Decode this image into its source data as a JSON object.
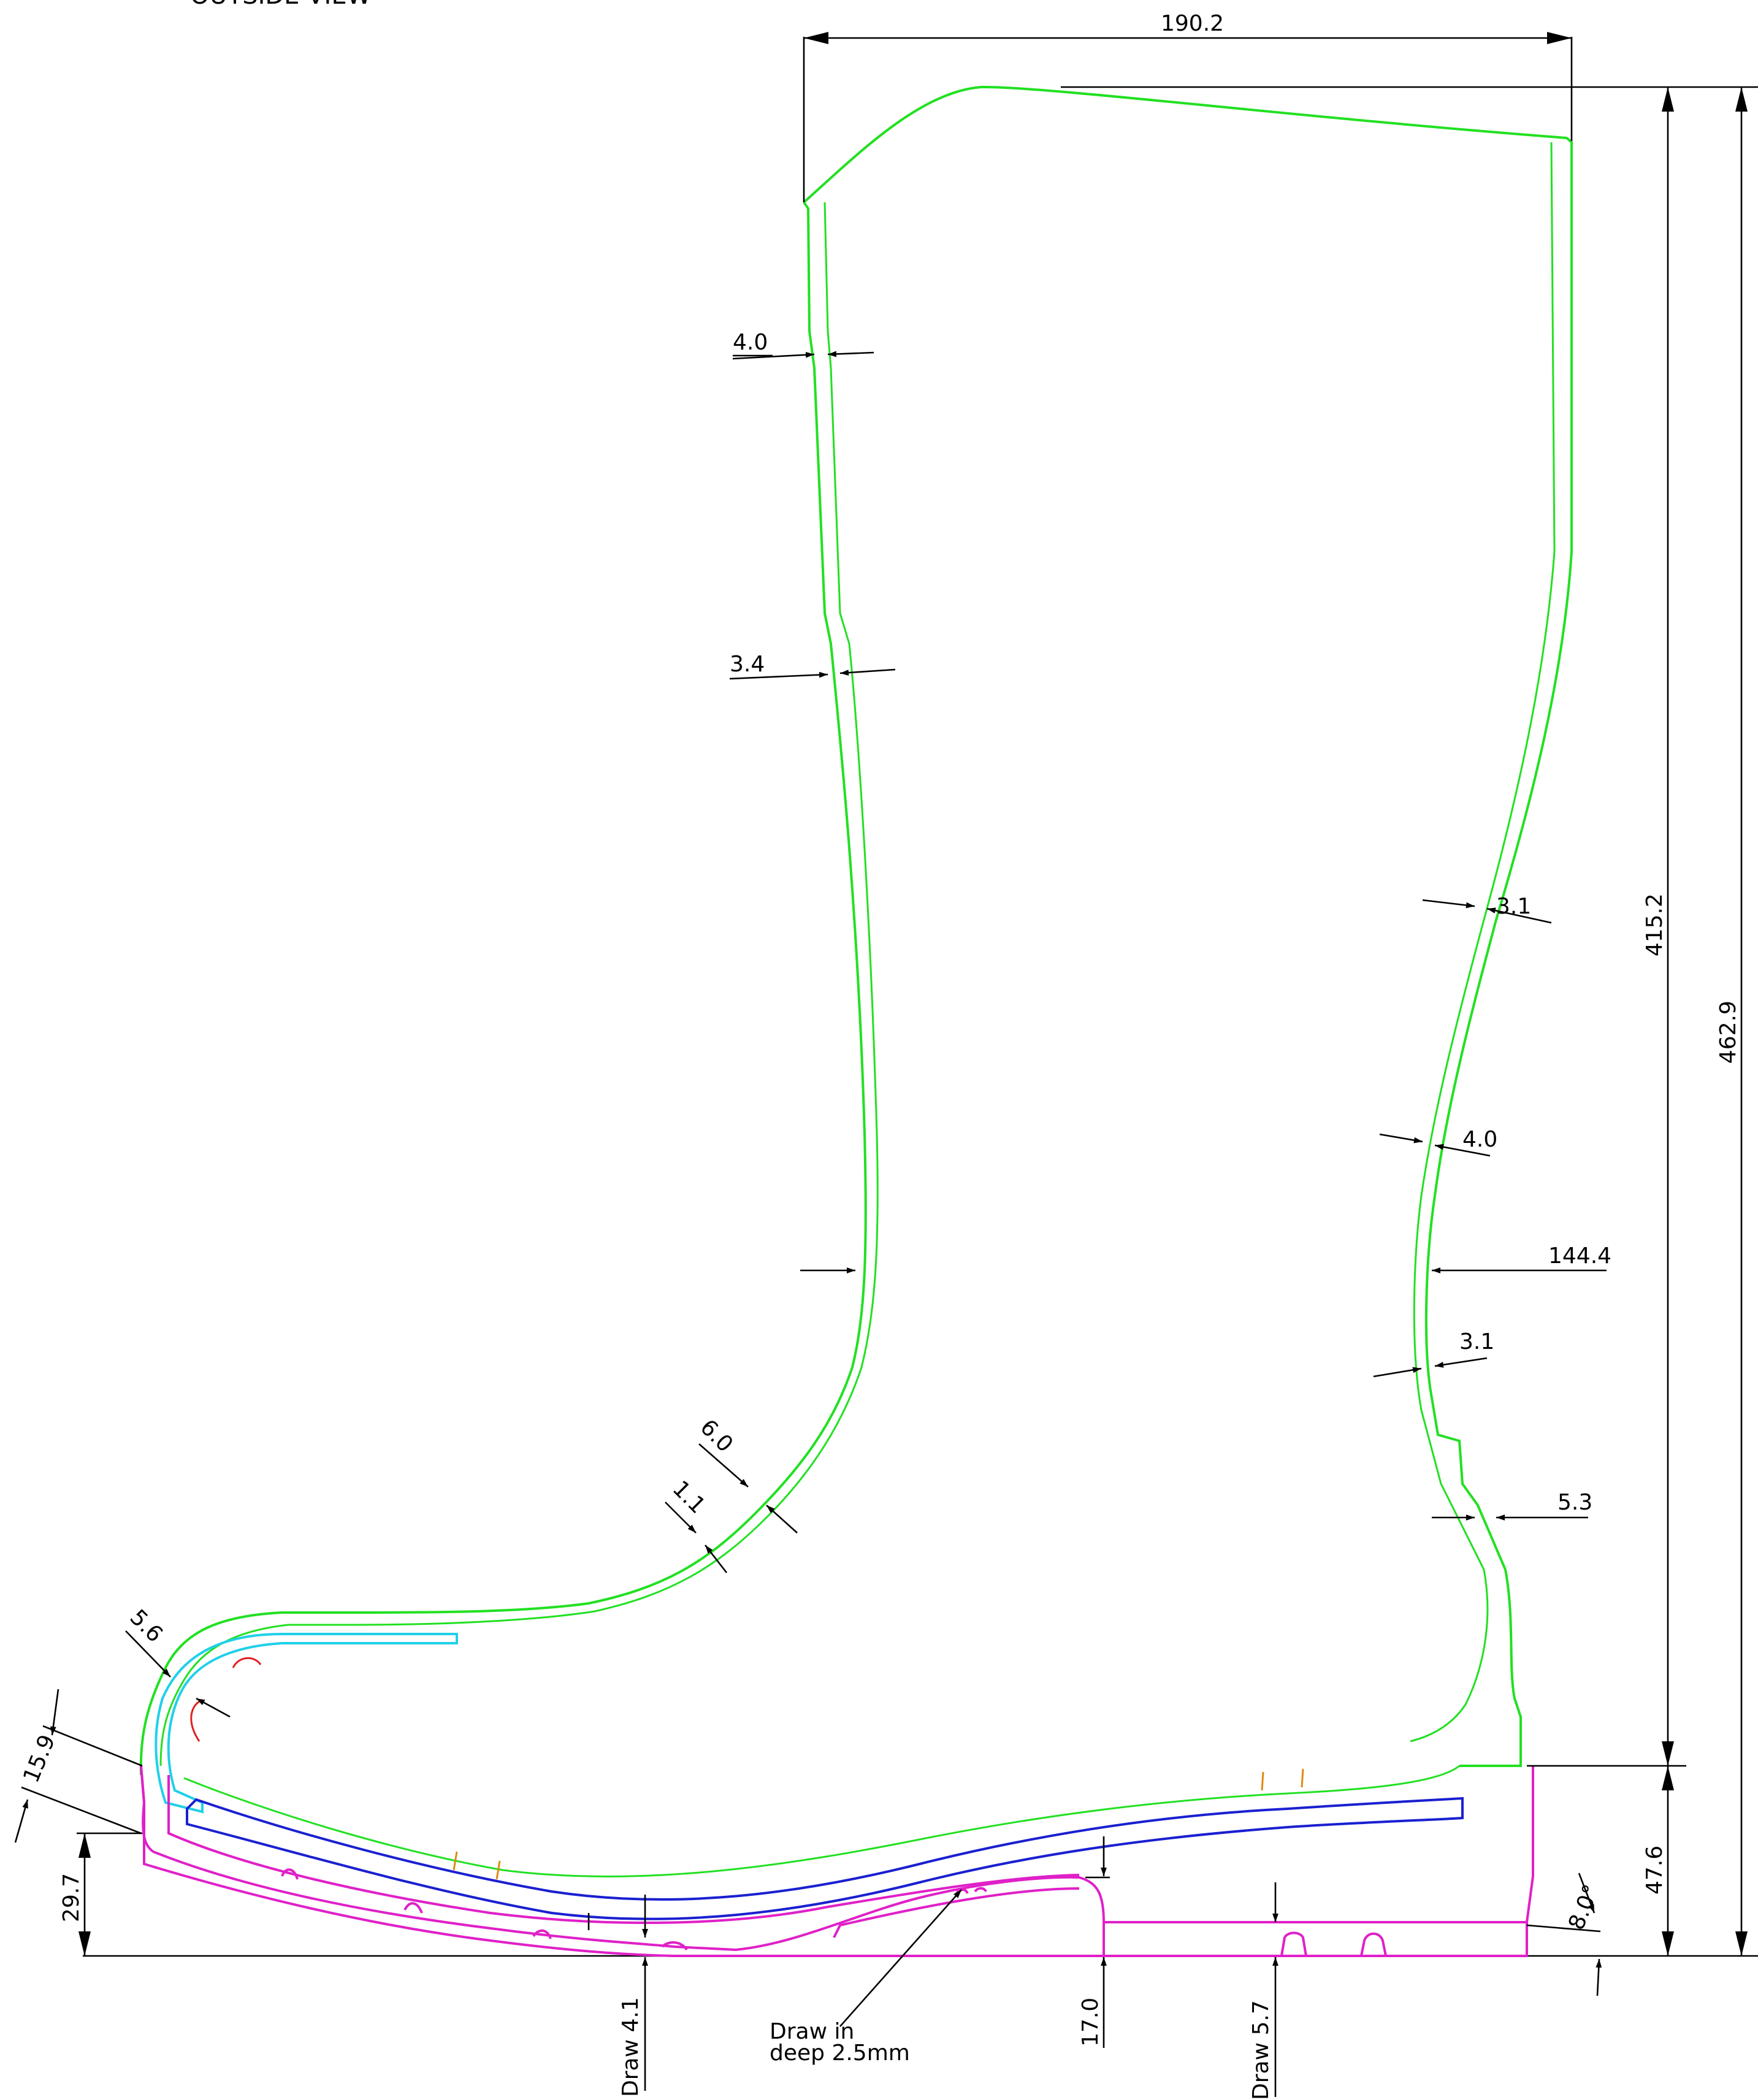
{
  "header": {
    "view_title": "OUTSIDE  VIEW"
  },
  "dimensions": {
    "top_width": "190.2",
    "height_shaft": "415.2",
    "height_total": "462.9",
    "sole_height": "47.6",
    "wall_40_upper": "4.0",
    "wall_34": "3.4",
    "wall_31_upper": "3.1",
    "wall_40_right": "4.0",
    "width_144": "144.4",
    "wall_31_lower": "3.1",
    "heel_53": "5.3",
    "wall_60": "6.0",
    "wall_11": "1.1",
    "toe_56": "5.6",
    "toe_159": "15.9",
    "toe_297": "29.7",
    "heel_angle": "8.0°",
    "draw_41": "Draw 4.1",
    "draw_in_line1": "Draw in",
    "draw_in_line2": "deep 2.5mm",
    "heel_170": "17.0",
    "draw_57": "Draw 5.7"
  },
  "colors": {
    "upper": "#22e022",
    "sole": "#e020c8",
    "insole": "#1a20d0",
    "toecap": "#20d0e8",
    "marker_red": "#e02020",
    "marker_orange": "#e08a10"
  }
}
